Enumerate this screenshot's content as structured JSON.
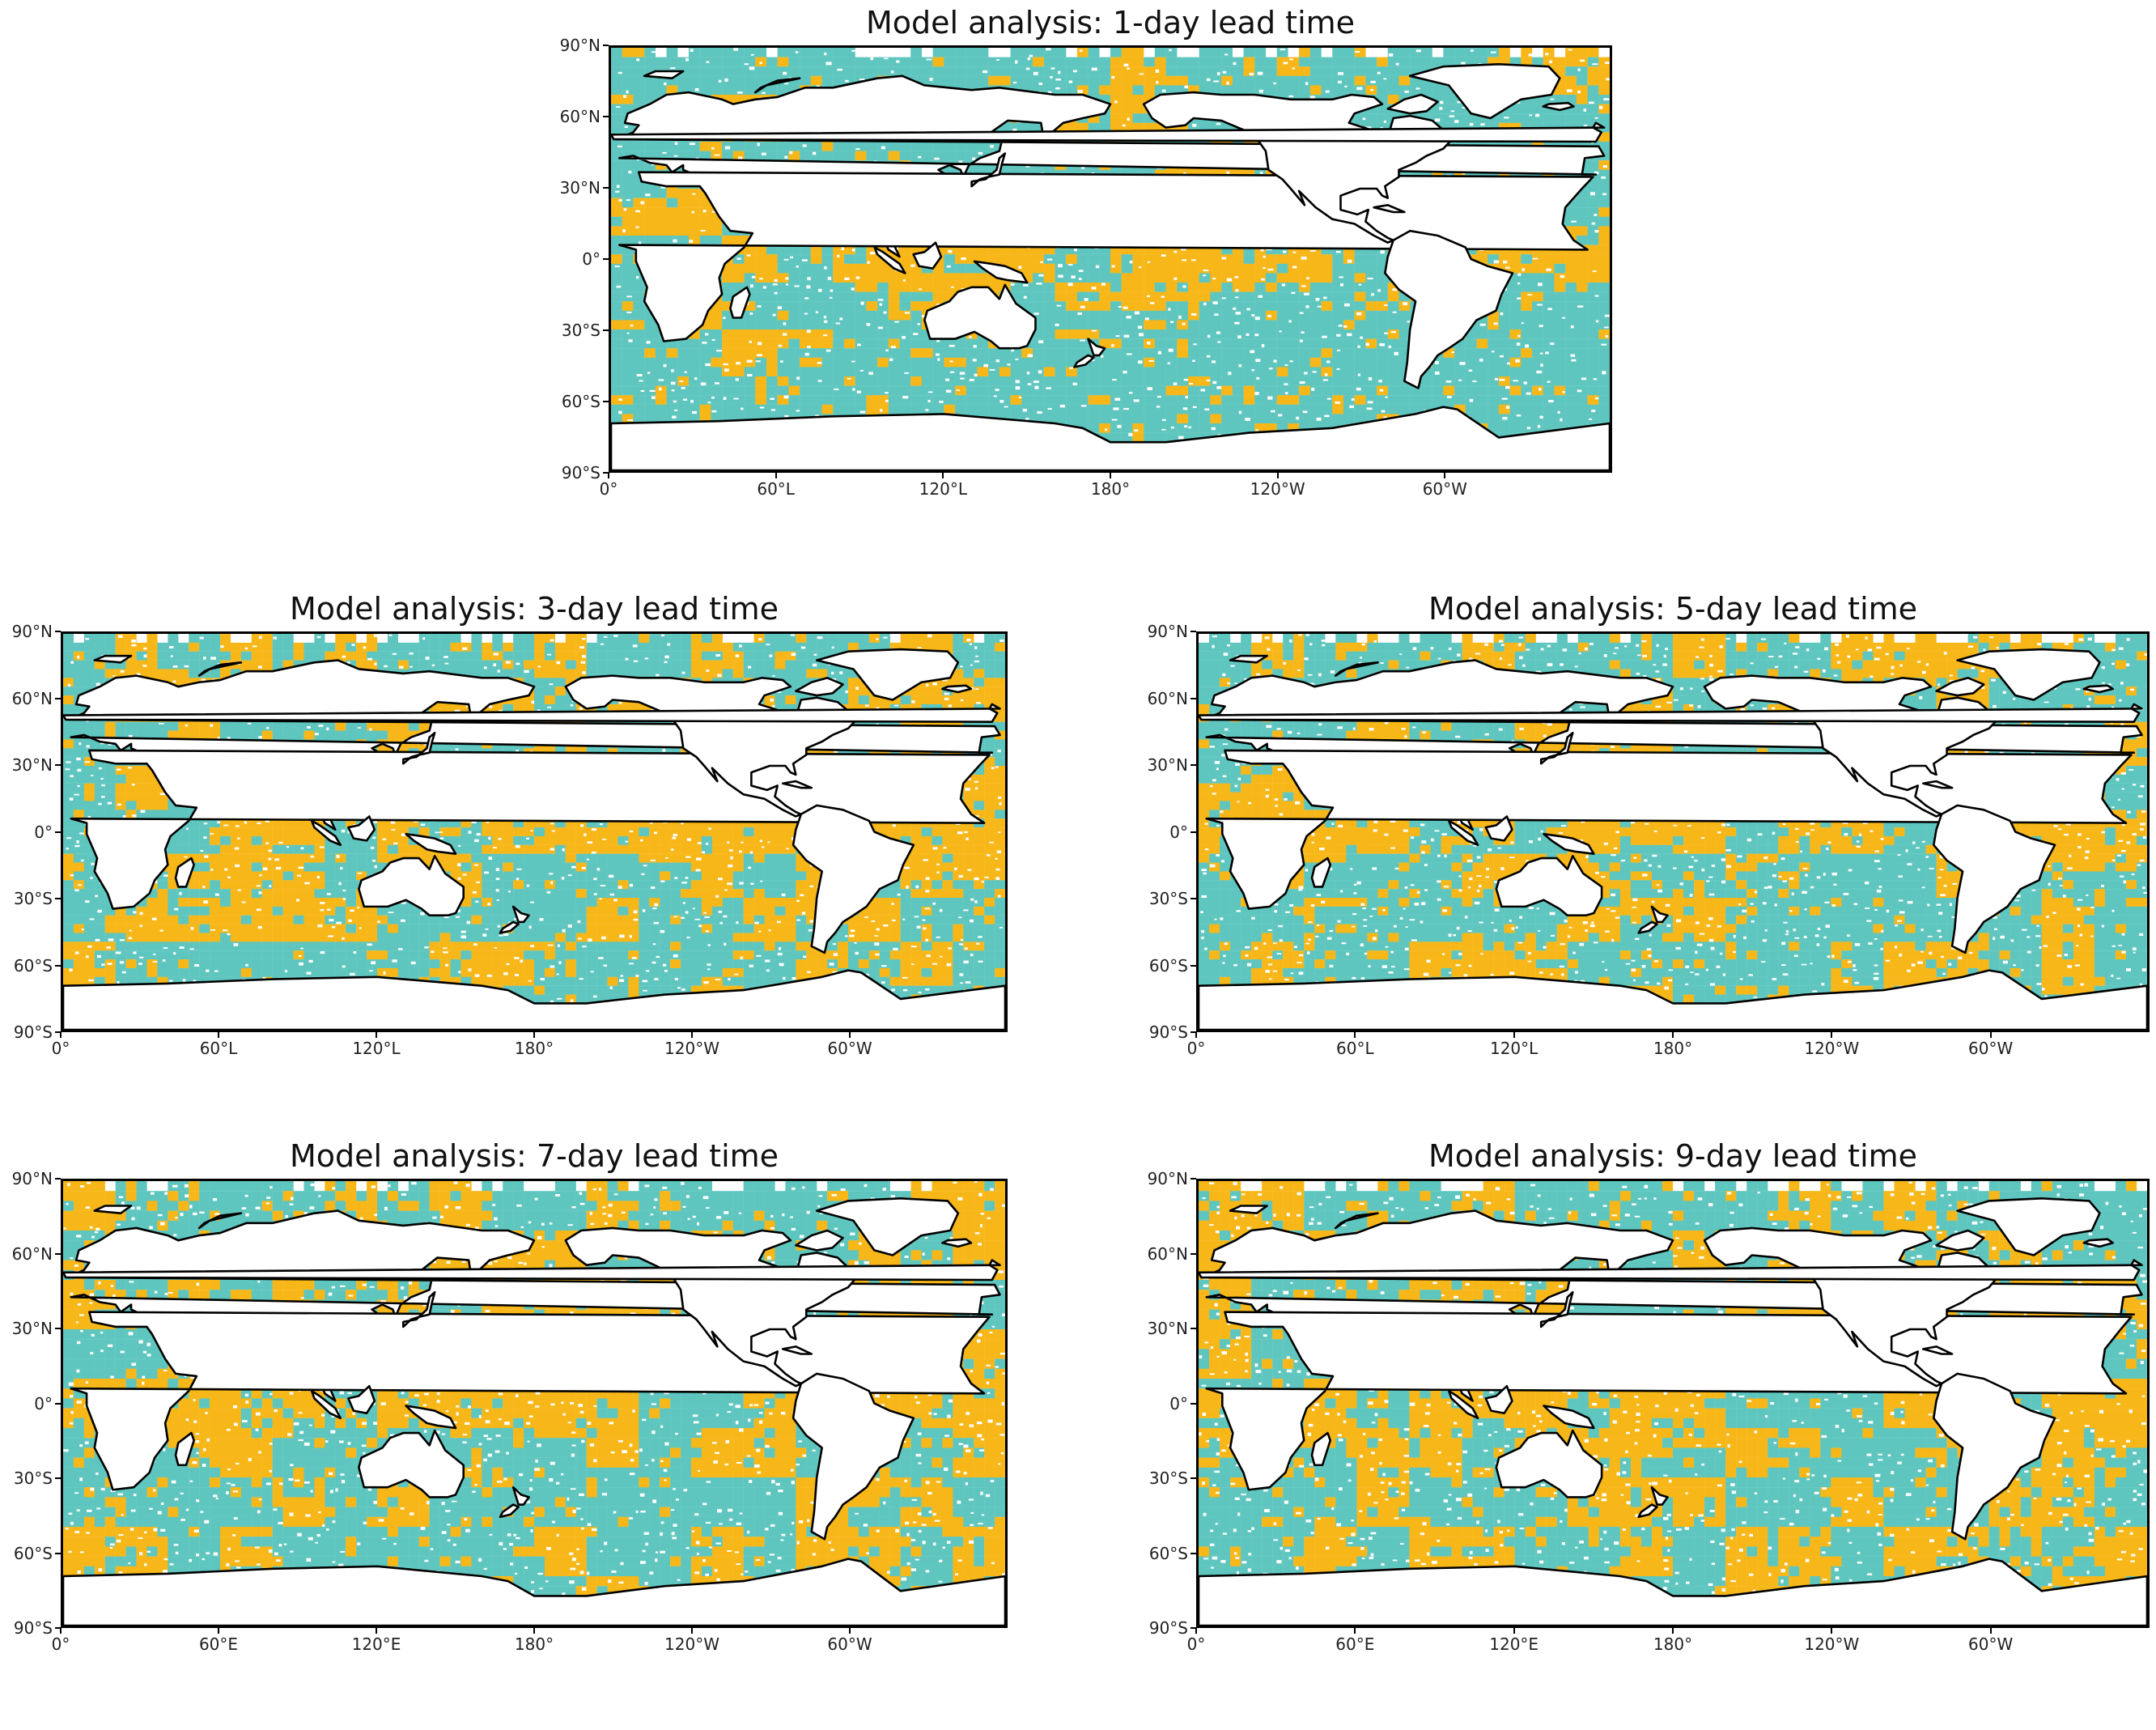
{
  "figure": {
    "colors": {
      "positive": "#F7B719",
      "negative": "#5FC6BF",
      "land": "#FFFFFF",
      "coast": "#000000"
    },
    "lat_ticks": [
      "90°N",
      "60°N",
      "30°N",
      "0°",
      "30°S",
      "60°S",
      "90°S"
    ],
    "panels": [
      {
        "title": "Model analysis: 1-day lead time",
        "lead_days": 1,
        "orange_fraction": 0.22,
        "lon_ticks": [
          "0°",
          "60°L",
          "120°L",
          "180°",
          "120°W",
          "60°W"
        ]
      },
      {
        "title": "Model analysis: 3-day lead time",
        "lead_days": 3,
        "orange_fraction": 0.62,
        "lon_ticks": [
          "0°",
          "60°L",
          "120°L",
          "180°",
          "120°W",
          "60°W"
        ]
      },
      {
        "title": "Model analysis: 5-day lead time",
        "lead_days": 5,
        "orange_fraction": 0.58,
        "lon_ticks": [
          "0°",
          "60°L",
          "120°L",
          "180°",
          "120°W",
          "60°W"
        ]
      },
      {
        "title": "Model analysis: 7-day lead time",
        "lead_days": 7,
        "orange_fraction": 0.56,
        "lon_ticks": [
          "0°",
          "60°E",
          "120°E",
          "180°",
          "120°W",
          "60°W"
        ]
      },
      {
        "title": "Model analysis: 9-day lead time",
        "lead_days": 9,
        "orange_fraction": 0.52,
        "lon_ticks": [
          "0°",
          "60°E",
          "120°E",
          "180°",
          "120°W",
          "60°W"
        ]
      }
    ]
  }
}
